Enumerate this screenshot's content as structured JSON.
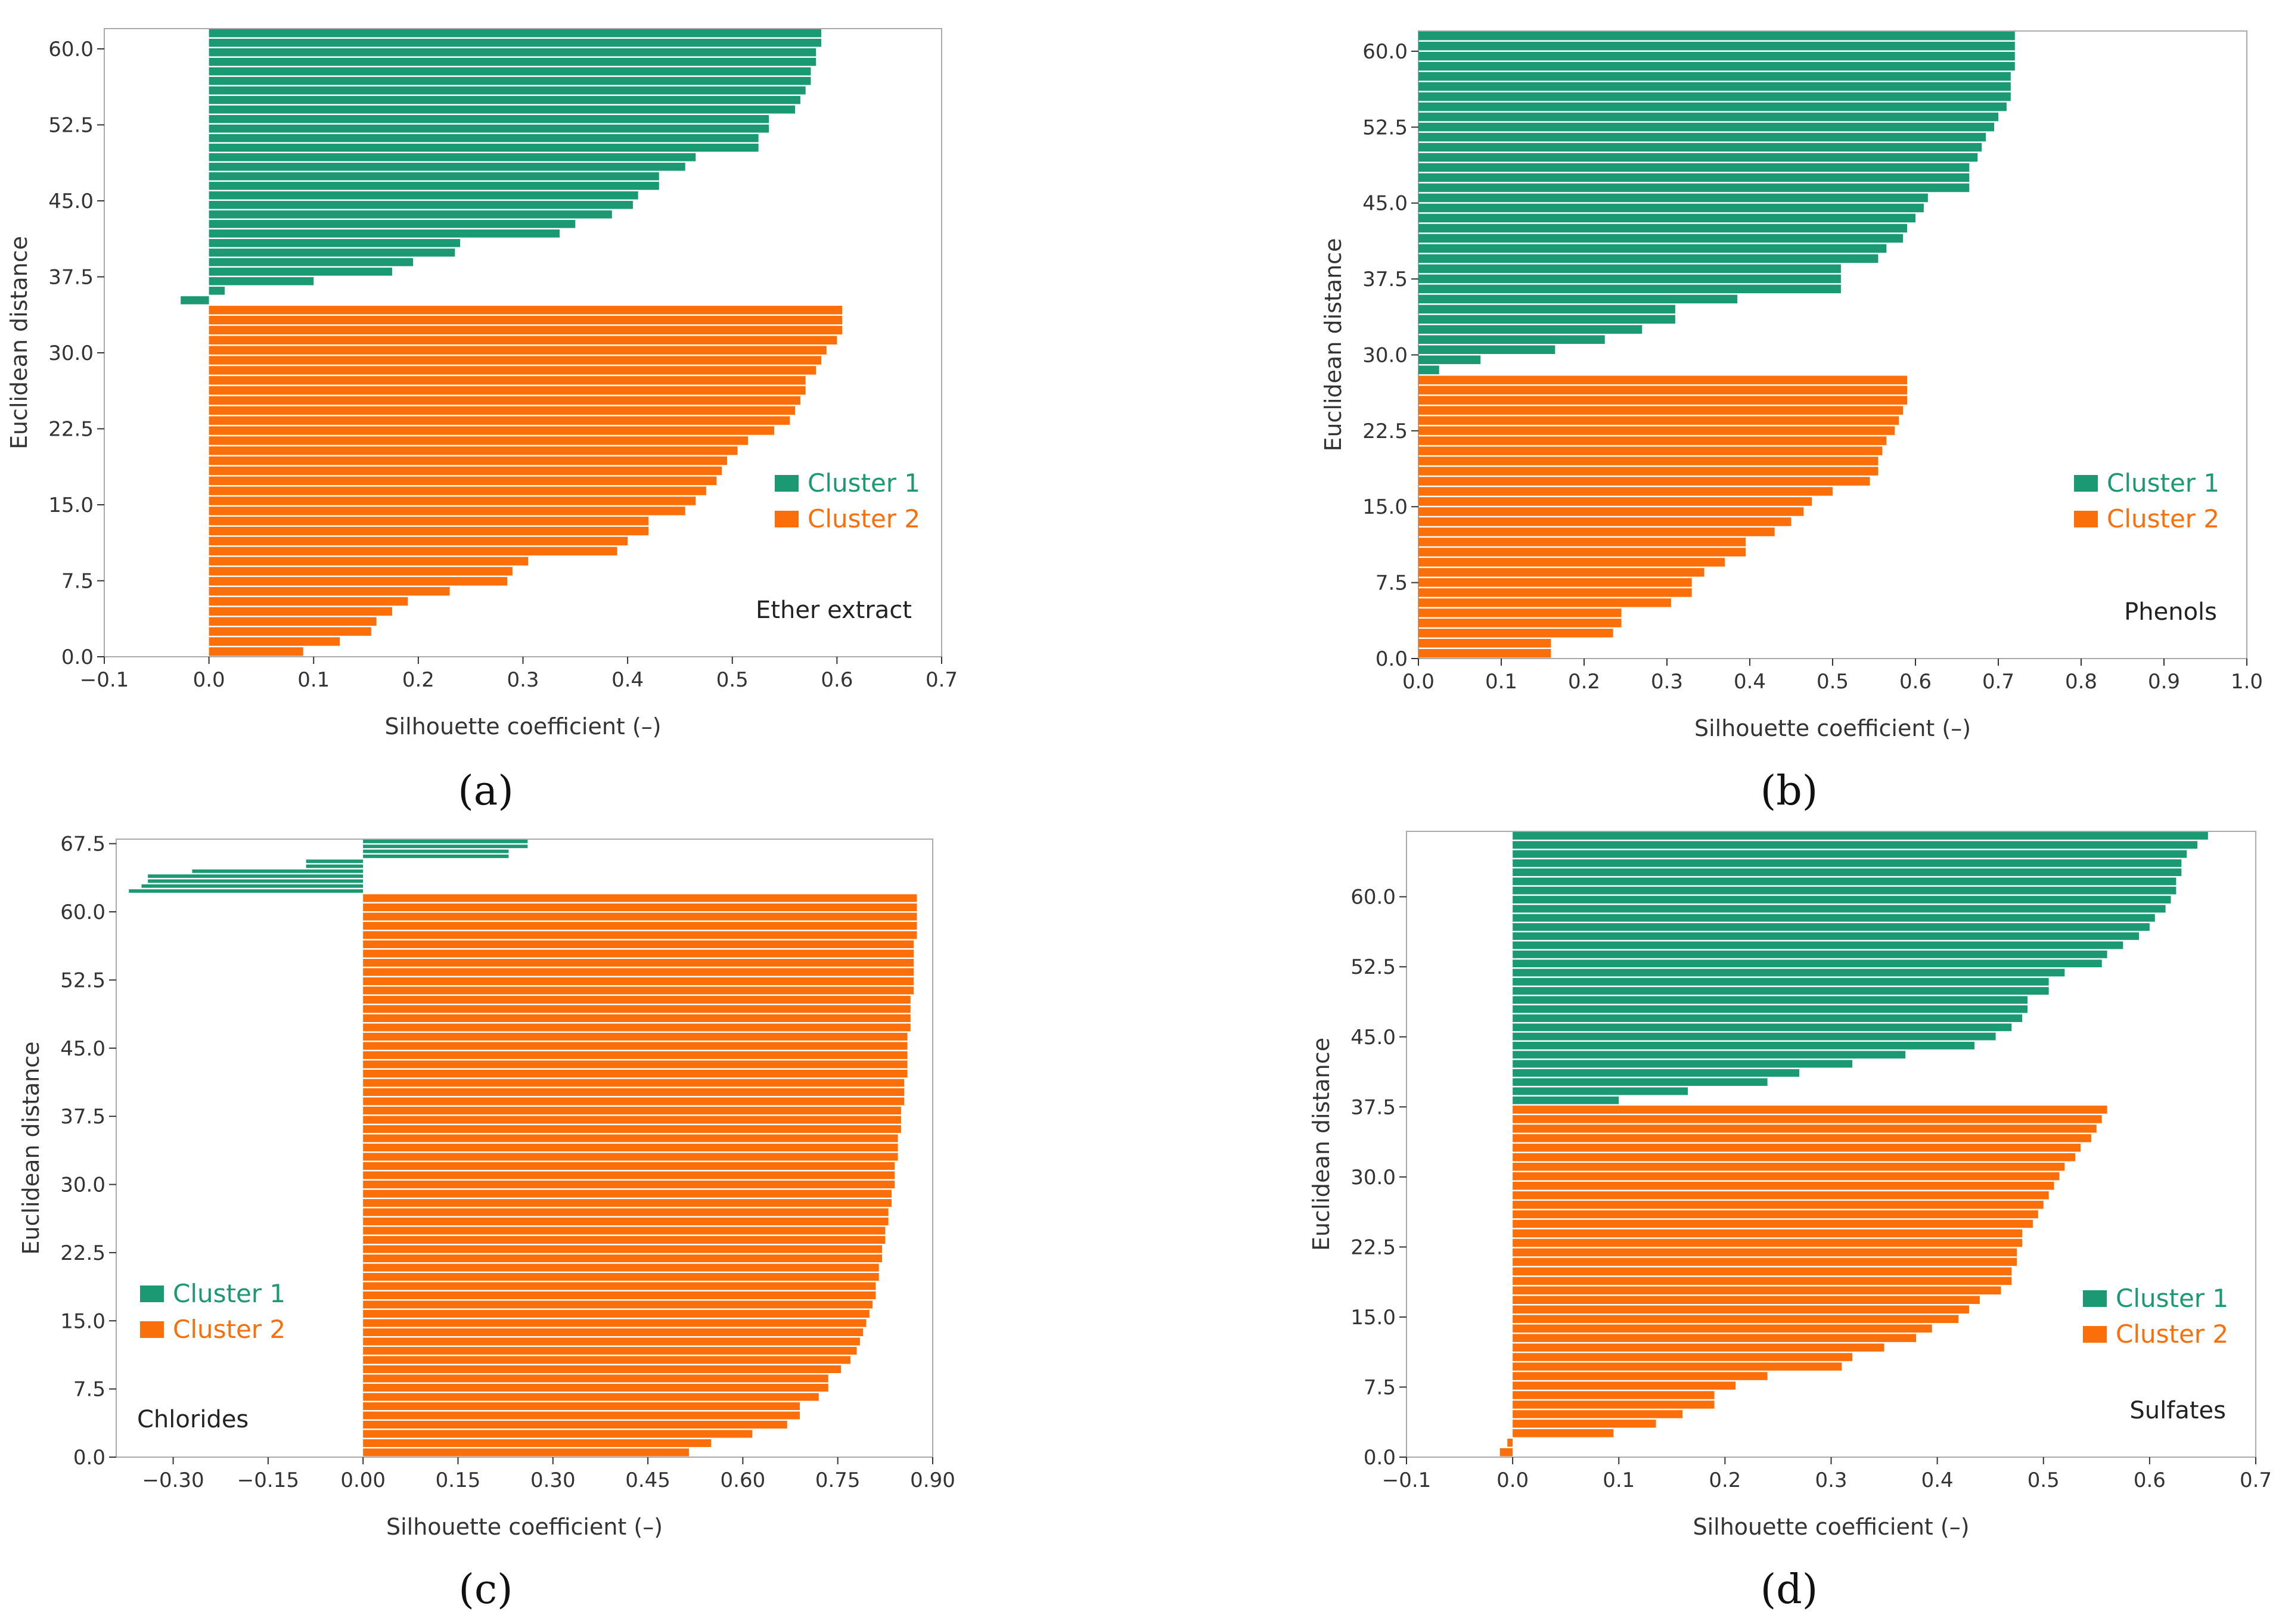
{
  "figure": {
    "legend_labels": [
      "Cluster 1",
      "Cluster 2"
    ],
    "colors": {
      "cluster1": "#1a9973",
      "cluster2": "#fb6f0a",
      "axis": "#333333",
      "frame": "#aaaaaa"
    }
  },
  "chart_data": [
    {
      "type": "bar",
      "orientation": "horizontal",
      "caption": "(a)",
      "annotation": "Ether extract",
      "xlabel": "Silhouette coefficient (–)",
      "ylabel": "Euclidean distance",
      "xlim": [
        -0.1,
        0.7
      ],
      "ylim": [
        0,
        62
      ],
      "xticks": [
        -0.1,
        0.0,
        0.1,
        0.2,
        0.3,
        0.4,
        0.5,
        0.6,
        0.7
      ],
      "xtick_labels": [
        "−0.1",
        "0.0",
        "0.1",
        "0.2",
        "0.3",
        "0.4",
        "0.5",
        "0.6",
        "0.7"
      ],
      "yticks": [
        0,
        7.5,
        15,
        22.5,
        30,
        37.5,
        45,
        52.5,
        60
      ],
      "ytick_labels": [
        "0.0",
        "7.5",
        "15.0",
        "22.5",
        "30.0",
        "37.5",
        "45.0",
        "52.5",
        "60.0"
      ],
      "legend_position": "right-middle",
      "series": [
        {
          "name": "Cluster 1",
          "y_start": 34.7,
          "y_end": 62,
          "values": [
            -0.027,
            0.015,
            0.1,
            0.175,
            0.195,
            0.235,
            0.24,
            0.335,
            0.35,
            0.385,
            0.405,
            0.41,
            0.43,
            0.43,
            0.455,
            0.465,
            0.525,
            0.525,
            0.535,
            0.535,
            0.56,
            0.565,
            0.57,
            0.575,
            0.575,
            0.58,
            0.58,
            0.585,
            0.585
          ]
        },
        {
          "name": "Cluster 2",
          "y_start": 0,
          "y_end": 34.7,
          "values": [
            0.09,
            0.125,
            0.155,
            0.16,
            0.175,
            0.19,
            0.23,
            0.285,
            0.29,
            0.305,
            0.39,
            0.4,
            0.42,
            0.42,
            0.455,
            0.465,
            0.475,
            0.485,
            0.49,
            0.495,
            0.505,
            0.515,
            0.54,
            0.555,
            0.56,
            0.565,
            0.57,
            0.57,
            0.58,
            0.585,
            0.59,
            0.6,
            0.605,
            0.605,
            0.605
          ]
        }
      ]
    },
    {
      "type": "bar",
      "orientation": "horizontal",
      "caption": "(b)",
      "annotation": "Phenols",
      "xlabel": "Silhouette coefficient (–)",
      "ylabel": "Euclidean distance",
      "xlim": [
        0.0,
        1.0
      ],
      "ylim": [
        0,
        62
      ],
      "xticks": [
        0.0,
        0.1,
        0.2,
        0.3,
        0.4,
        0.5,
        0.6,
        0.7,
        0.8,
        0.9,
        1.0
      ],
      "xtick_labels": [
        "0.0",
        "0.1",
        "0.2",
        "0.3",
        "0.4",
        "0.5",
        "0.6",
        "0.7",
        "0.8",
        "0.9",
        "1.0"
      ],
      "yticks": [
        0,
        7.5,
        15,
        22.5,
        30,
        37.5,
        45,
        52.5,
        60
      ],
      "ytick_labels": [
        "0.0",
        "7.5",
        "15.0",
        "22.5",
        "30.0",
        "37.5",
        "45.0",
        "52.5",
        "60.0"
      ],
      "legend_position": "right-middle",
      "series": [
        {
          "name": "Cluster 1",
          "y_start": 28,
          "y_end": 62,
          "values": [
            0.025,
            0.075,
            0.165,
            0.225,
            0.27,
            0.31,
            0.31,
            0.385,
            0.51,
            0.51,
            0.51,
            0.555,
            0.565,
            0.585,
            0.59,
            0.6,
            0.61,
            0.615,
            0.665,
            0.665,
            0.665,
            0.675,
            0.68,
            0.685,
            0.695,
            0.7,
            0.71,
            0.715,
            0.715,
            0.715,
            0.72,
            0.72,
            0.72,
            0.72
          ]
        },
        {
          "name": "Cluster 2",
          "y_start": 0,
          "y_end": 28,
          "values": [
            0.16,
            0.16,
            0.235,
            0.245,
            0.245,
            0.305,
            0.33,
            0.33,
            0.345,
            0.37,
            0.395,
            0.395,
            0.43,
            0.45,
            0.465,
            0.475,
            0.5,
            0.545,
            0.555,
            0.555,
            0.56,
            0.565,
            0.575,
            0.58,
            0.585,
            0.59,
            0.59,
            0.59
          ]
        }
      ]
    },
    {
      "type": "bar",
      "orientation": "horizontal",
      "caption": "(c)",
      "annotation": "Chlorides",
      "xlabel": "Silhouette coefficient (–)",
      "ylabel": "Euclidean distance",
      "xlim": [
        -0.39,
        0.9
      ],
      "ylim": [
        0,
        68
      ],
      "xticks": [
        -0.3,
        -0.15,
        0.0,
        0.15,
        0.3,
        0.45,
        0.6,
        0.75,
        0.9
      ],
      "xtick_labels": [
        "−0.30",
        "−0.15",
        "0.00",
        "0.15",
        "0.30",
        "0.45",
        "0.60",
        "0.75",
        "0.90"
      ],
      "yticks": [
        0,
        7.5,
        15,
        22.5,
        30,
        37.5,
        45,
        52.5,
        60,
        67.5
      ],
      "ytick_labels": [
        "0.0",
        "7.5",
        "15.0",
        "22.5",
        "30.0",
        "37.5",
        "45.0",
        "52.5",
        "60.0",
        "67.5"
      ],
      "legend_position": "left-bottom",
      "series": [
        {
          "name": "Cluster 1",
          "y_start": 62,
          "y_end": 68,
          "values": [
            -0.37,
            -0.35,
            -0.34,
            -0.34,
            -0.27,
            -0.09,
            -0.09,
            0.23,
            0.23,
            0.26,
            0.26
          ]
        },
        {
          "name": "Cluster 2",
          "y_start": 0,
          "y_end": 62,
          "values": [
            0.515,
            0.55,
            0.615,
            0.67,
            0.69,
            0.69,
            0.72,
            0.735,
            0.735,
            0.755,
            0.77,
            0.78,
            0.785,
            0.79,
            0.795,
            0.8,
            0.805,
            0.81,
            0.81,
            0.815,
            0.815,
            0.82,
            0.82,
            0.825,
            0.825,
            0.83,
            0.83,
            0.835,
            0.835,
            0.84,
            0.84,
            0.84,
            0.845,
            0.845,
            0.845,
            0.85,
            0.85,
            0.85,
            0.855,
            0.855,
            0.855,
            0.86,
            0.86,
            0.86,
            0.86,
            0.86,
            0.865,
            0.865,
            0.865,
            0.865,
            0.87,
            0.87,
            0.87,
            0.87,
            0.87,
            0.87,
            0.875,
            0.875,
            0.875,
            0.875,
            0.875
          ]
        }
      ]
    },
    {
      "type": "bar",
      "orientation": "horizontal",
      "caption": "(d)",
      "annotation": "Sulfates",
      "xlabel": "Silhouette coefficient (–)",
      "ylabel": "Euclidean distance",
      "xlim": [
        -0.1,
        0.7
      ],
      "ylim": [
        0,
        67
      ],
      "xticks": [
        -0.1,
        0.0,
        0.1,
        0.2,
        0.3,
        0.4,
        0.5,
        0.6,
        0.7
      ],
      "xtick_labels": [
        "−0.1",
        "0.0",
        "0.1",
        "0.2",
        "0.3",
        "0.4",
        "0.5",
        "0.6",
        "0.7"
      ],
      "yticks": [
        0,
        7.5,
        15,
        22.5,
        30,
        37.5,
        45,
        52.5,
        60
      ],
      "ytick_labels": [
        "0.0",
        "7.5",
        "15.0",
        "22.5",
        "30.0",
        "37.5",
        "45.0",
        "52.5",
        "60.0"
      ],
      "legend_position": "right-bottom",
      "series": [
        {
          "name": "Cluster 1",
          "y_start": 37.7,
          "y_end": 67,
          "values": [
            0.1,
            0.165,
            0.24,
            0.27,
            0.32,
            0.37,
            0.435,
            0.455,
            0.47,
            0.48,
            0.485,
            0.485,
            0.505,
            0.505,
            0.52,
            0.555,
            0.56,
            0.575,
            0.59,
            0.6,
            0.605,
            0.615,
            0.62,
            0.625,
            0.625,
            0.63,
            0.63,
            0.635,
            0.645,
            0.655
          ]
        },
        {
          "name": "Cluster 2",
          "y_start": 0,
          "y_end": 37.7,
          "values": [
            -0.012,
            -0.005,
            0.095,
            0.135,
            0.16,
            0.19,
            0.19,
            0.21,
            0.24,
            0.31,
            0.32,
            0.35,
            0.38,
            0.395,
            0.42,
            0.43,
            0.44,
            0.46,
            0.47,
            0.47,
            0.475,
            0.475,
            0.48,
            0.48,
            0.49,
            0.495,
            0.5,
            0.505,
            0.51,
            0.515,
            0.52,
            0.53,
            0.535,
            0.545,
            0.55,
            0.555,
            0.56
          ]
        }
      ]
    }
  ]
}
